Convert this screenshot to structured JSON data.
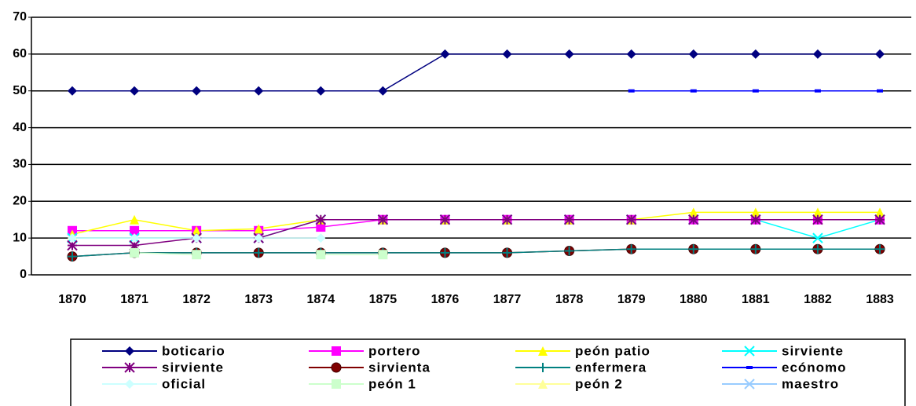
{
  "chart_data": {
    "type": "line",
    "categories": [
      "1870",
      "1871",
      "1872",
      "1873",
      "1874",
      "1875",
      "1876",
      "1877",
      "1878",
      "1879",
      "1880",
      "1881",
      "1882",
      "1883"
    ],
    "ylim": [
      0,
      70
    ],
    "yticks": [
      0,
      10,
      20,
      30,
      40,
      50,
      60,
      70
    ],
    "grid": true,
    "legend": "bottom",
    "series": [
      {
        "name": "boticario",
        "color": "#000080",
        "marker": "diamond",
        "values": [
          50,
          50,
          50,
          50,
          50,
          50,
          60,
          60,
          60,
          60,
          60,
          60,
          60,
          60
        ]
      },
      {
        "name": "portero",
        "color": "#ff00ff",
        "marker": "square",
        "values": [
          12,
          12,
          12,
          12,
          13,
          15,
          15,
          15,
          15,
          15,
          15,
          15,
          15,
          15
        ]
      },
      {
        "name": "peón patio",
        "color": "#ffff00",
        "marker": "triangle",
        "values": [
          11,
          15,
          12,
          12.5,
          15,
          15,
          15,
          15,
          15,
          15,
          17,
          17,
          17,
          17
        ]
      },
      {
        "name": "sirviente",
        "color": "#00ffff",
        "marker": "x",
        "values": [
          10,
          10,
          10,
          10,
          15,
          15,
          15,
          15,
          15,
          15,
          15,
          15,
          10,
          15
        ]
      },
      {
        "name": "sirviente",
        "color": "#800080",
        "marker": "asterisk",
        "values": [
          8,
          8,
          10,
          10,
          15,
          15,
          15,
          15,
          15,
          15,
          15,
          15,
          15,
          15
        ]
      },
      {
        "name": "sirvienta",
        "color": "#800000",
        "marker": "circle",
        "values": [
          5,
          6,
          6,
          6,
          6,
          6,
          6,
          6,
          6.5,
          7,
          7,
          7,
          7,
          7
        ]
      },
      {
        "name": "enfermera",
        "color": "#008080",
        "marker": "plus",
        "values": [
          5,
          6,
          6,
          6,
          6,
          6,
          6,
          6,
          6.5,
          7,
          7,
          7,
          7,
          7
        ]
      },
      {
        "name": "ecónomo",
        "color": "#0000ff",
        "marker": "dash",
        "values": [
          null,
          null,
          null,
          null,
          null,
          null,
          null,
          null,
          null,
          50,
          50,
          50,
          50,
          50
        ]
      },
      {
        "name": "oficial",
        "color": "#ccffff",
        "marker": "diamond",
        "values": [
          10,
          10,
          10,
          10,
          10,
          null,
          null,
          null,
          null,
          null,
          null,
          null,
          null,
          null
        ]
      },
      {
        "name": "peón 1",
        "color": "#ccffcc",
        "marker": "square",
        "values": [
          null,
          6,
          5.5,
          null,
          5.5,
          5.5,
          null,
          null,
          null,
          null,
          null,
          null,
          null,
          null
        ]
      },
      {
        "name": "peón 2",
        "color": "#ffff99",
        "marker": "triangle",
        "values": [
          null,
          null,
          null,
          null,
          null,
          null,
          null,
          null,
          null,
          null,
          null,
          null,
          null,
          null
        ]
      },
      {
        "name": "maestro",
        "color": "#99ccff",
        "marker": "x",
        "values": [
          null,
          null,
          null,
          null,
          null,
          null,
          null,
          null,
          null,
          null,
          null,
          null,
          null,
          null
        ]
      }
    ]
  }
}
